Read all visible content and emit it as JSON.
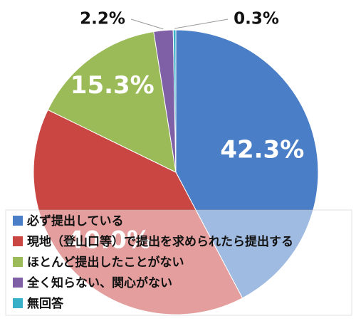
{
  "chart_data": {
    "type": "pie",
    "title": "",
    "categories": [
      "必ず提出している",
      "現地（登山口等）で提出を求められたら提出する",
      "ほとんど提出したことがない",
      "全く知らない、関心がない",
      "無回答"
    ],
    "values": [
      42.3,
      40.0,
      15.3,
      2.2,
      0.3
    ],
    "labels": [
      "42.3%",
      "40.0%",
      "15.3%",
      "2.2%",
      "0.3%"
    ],
    "colors": [
      "#4a7ec6",
      "#c94643",
      "#9bbb58",
      "#7f5fa6",
      "#37b0c8"
    ],
    "legend": {
      "position": "bottom-left",
      "entries": [
        "必ず提出している",
        "現地（登山口等）で提出を求められたら提出する",
        "ほとんど提出したことがない",
        "全く知らない、関心がない",
        "無回答"
      ]
    }
  }
}
